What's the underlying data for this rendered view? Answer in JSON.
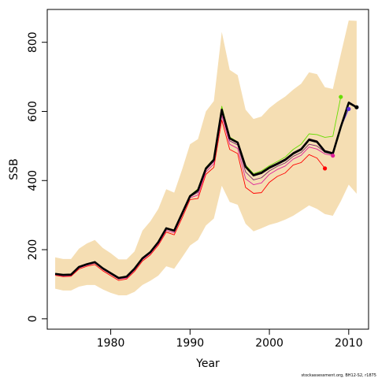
{
  "chart_data": {
    "type": "line",
    "title": "",
    "xlabel": "Year",
    "ylabel": "SSB",
    "xlim": [
      1972,
      2012.5
    ],
    "ylim": [
      -30,
      895
    ],
    "xticks": [
      1980,
      1990,
      2000,
      2010
    ],
    "yticks": [
      0,
      200,
      400,
      600,
      800
    ],
    "grid": false,
    "legend": "none",
    "credit": "stockassessment.org, BH12-S2, r1875",
    "colors": {
      "band": "#f5deb3",
      "main": "#000000",
      "peel_1": "#ff0000",
      "peel_2": "#dd2299",
      "peel_3": "#7b2a6b",
      "peel_4": "#3a1a2e",
      "peel_5": "#66dd00",
      "peel_6": "#5b2bd6"
    },
    "band": {
      "x": [
        1973,
        1974,
        1975,
        1976,
        1977,
        1978,
        1979,
        1980,
        1981,
        1982,
        1983,
        1984,
        1985,
        1986,
        1987,
        1988,
        1989,
        1990,
        1991,
        1992,
        1993,
        1994,
        1995,
        1996,
        1997,
        1998,
        1999,
        2000,
        2001,
        2002,
        2003,
        2004,
        2005,
        2006,
        2007,
        2008,
        2009,
        2010,
        2011
      ],
      "upper": [
        178,
        173,
        173,
        203,
        218,
        228,
        205,
        190,
        172,
        172,
        195,
        255,
        282,
        318,
        375,
        365,
        432,
        505,
        520,
        600,
        630,
        830,
        720,
        705,
        605,
        578,
        585,
        610,
        628,
        643,
        663,
        680,
        713,
        708,
        670,
        665,
        765,
        863,
        862
      ],
      "lower": [
        87,
        82,
        82,
        93,
        98,
        98,
        85,
        75,
        68,
        68,
        78,
        98,
        110,
        125,
        152,
        145,
        178,
        212,
        228,
        270,
        290,
        385,
        338,
        330,
        275,
        253,
        262,
        272,
        278,
        287,
        298,
        313,
        328,
        318,
        303,
        298,
        340,
        388,
        362
      ]
    },
    "series": [
      {
        "key": "main",
        "x": [
          1973,
          1974,
          1975,
          1976,
          1977,
          1978,
          1979,
          1980,
          1981,
          1982,
          1983,
          1984,
          1985,
          1986,
          1987,
          1988,
          1989,
          1990,
          1991,
          1992,
          1993,
          1994,
          1995,
          1996,
          1997,
          1998,
          1999,
          2000,
          2001,
          2002,
          2003,
          2004,
          2005,
          2006,
          2007,
          2008,
          2009,
          2010,
          2011
        ],
        "y": [
          130,
          127,
          128,
          150,
          158,
          164,
          146,
          132,
          118,
          122,
          145,
          175,
          193,
          222,
          262,
          255,
          305,
          355,
          372,
          435,
          460,
          605,
          522,
          510,
          440,
          415,
          422,
          437,
          448,
          460,
          478,
          490,
          518,
          512,
          484,
          478,
          555,
          625,
          612
        ],
        "end_point": true
      },
      {
        "key": "peel_1",
        "x": [
          1973,
          1974,
          1975,
          1976,
          1977,
          1978,
          1979,
          1980,
          1981,
          1982,
          1983,
          1984,
          1985,
          1986,
          1987,
          1988,
          1989,
          1990,
          1991,
          1992,
          1993,
          1994,
          1995,
          1996,
          1997,
          1998,
          1999,
          2000,
          2001,
          2002,
          2003,
          2004,
          2005,
          2006,
          2007
        ],
        "y": [
          126,
          122,
          123,
          144,
          152,
          157,
          139,
          125,
          111,
          115,
          137,
          167,
          185,
          213,
          251,
          243,
          292,
          345,
          348,
          418,
          438,
          575,
          490,
          478,
          380,
          363,
          365,
          395,
          412,
          422,
          445,
          452,
          475,
          465,
          435
        ],
        "end_point": true
      },
      {
        "key": "peel_2",
        "x": [
          1973,
          1974,
          1975,
          1976,
          1977,
          1978,
          1979,
          1980,
          1981,
          1982,
          1983,
          1984,
          1985,
          1986,
          1987,
          1988,
          1989,
          1990,
          1991,
          1992,
          1993,
          1994,
          1995,
          1996,
          1997,
          1998,
          1999,
          2000,
          2001,
          2002,
          2003,
          2004,
          2005,
          2006,
          2007,
          2008
        ],
        "y": [
          128,
          124,
          125,
          147,
          155,
          161,
          143,
          129,
          115,
          118,
          141,
          171,
          189,
          217,
          256,
          249,
          299,
          350,
          358,
          425,
          448,
          588,
          505,
          493,
          405,
          388,
          393,
          418,
          432,
          442,
          462,
          473,
          497,
          491,
          477,
          472
        ],
        "end_point": true
      },
      {
        "key": "peel_3",
        "x": [
          1973,
          1974,
          1975,
          1976,
          1977,
          1978,
          1979,
          1980,
          1981,
          1982,
          1983,
          1984,
          1985,
          1986,
          1987,
          1988,
          1989,
          1990,
          1991,
          1992,
          1993,
          1994,
          1995,
          1996,
          1997,
          1998,
          1999,
          2000,
          2001,
          2002,
          2003,
          2004,
          2005,
          2006,
          2007,
          2008,
          2009
        ],
        "y": [
          129,
          126,
          127,
          149,
          157,
          163,
          145,
          131,
          117,
          120,
          143,
          173,
          191,
          220,
          260,
          253,
          303,
          353,
          366,
          431,
          455,
          598,
          515,
          503,
          425,
          402,
          408,
          428,
          441,
          451,
          470,
          481,
          505,
          500,
          482,
          476,
          555
        ],
        "end_point": false
      },
      {
        "key": "peel_4",
        "x": [
          1973,
          1974,
          1975,
          1976,
          1977,
          1978,
          1979,
          1980,
          1981,
          1982,
          1983,
          1984,
          1985,
          1986,
          1987,
          1988,
          1989,
          1990,
          1991,
          1992,
          1993,
          1994,
          1995,
          1996,
          1997,
          1998,
          1999,
          2000,
          2001,
          2002,
          2003,
          2004,
          2005,
          2006,
          2007,
          2008,
          2009,
          2010,
          2011
        ],
        "y": [
          131,
          128,
          129,
          151,
          159,
          165,
          147,
          133,
          119,
          123,
          146,
          176,
          194,
          223,
          263,
          256,
          306,
          357,
          374,
          437,
          462,
          608,
          524,
          512,
          443,
          418,
          425,
          440,
          451,
          463,
          481,
          493,
          521,
          515,
          487,
          481,
          558,
          628,
          614
        ],
        "end_point": false
      },
      {
        "key": "peel_5",
        "x": [
          1973,
          1974,
          1975,
          1976,
          1977,
          1978,
          1979,
          1980,
          1981,
          1982,
          1983,
          1984,
          1985,
          1986,
          1987,
          1988,
          1989,
          1990,
          1991,
          1992,
          1993,
          1994,
          1995,
          1996,
          1997,
          1998,
          1999,
          2000,
          2001,
          2002,
          2003,
          2004,
          2005,
          2006,
          2007,
          2008,
          2009
        ],
        "y": [
          130,
          127,
          128,
          150,
          158,
          164,
          146,
          132,
          118,
          122,
          145,
          175,
          193,
          222,
          262,
          255,
          305,
          357,
          376,
          438,
          463,
          615,
          526,
          512,
          445,
          420,
          428,
          443,
          455,
          468,
          490,
          505,
          535,
          533,
          525,
          528,
          642
        ],
        "end_point": true
      },
      {
        "key": "peel_6",
        "x": [
          1973,
          1974,
          1975,
          1976,
          1977,
          1978,
          1979,
          1980,
          1981,
          1982,
          1983,
          1984,
          1985,
          1986,
          1987,
          1988,
          1989,
          1990,
          1991,
          1992,
          1993,
          1994,
          1995,
          1996,
          1997,
          1998,
          1999,
          2000,
          2001,
          2002,
          2003,
          2004,
          2005,
          2006,
          2007,
          2008,
          2009,
          2010
        ],
        "y": [
          130,
          127,
          128,
          150,
          158,
          164,
          146,
          132,
          118,
          122,
          145,
          175,
          193,
          222,
          262,
          255,
          305,
          355,
          372,
          434,
          459,
          603,
          520,
          508,
          438,
          413,
          420,
          435,
          446,
          458,
          476,
          488,
          516,
          510,
          482,
          476,
          553,
          607
        ],
        "end_point": true
      }
    ]
  }
}
